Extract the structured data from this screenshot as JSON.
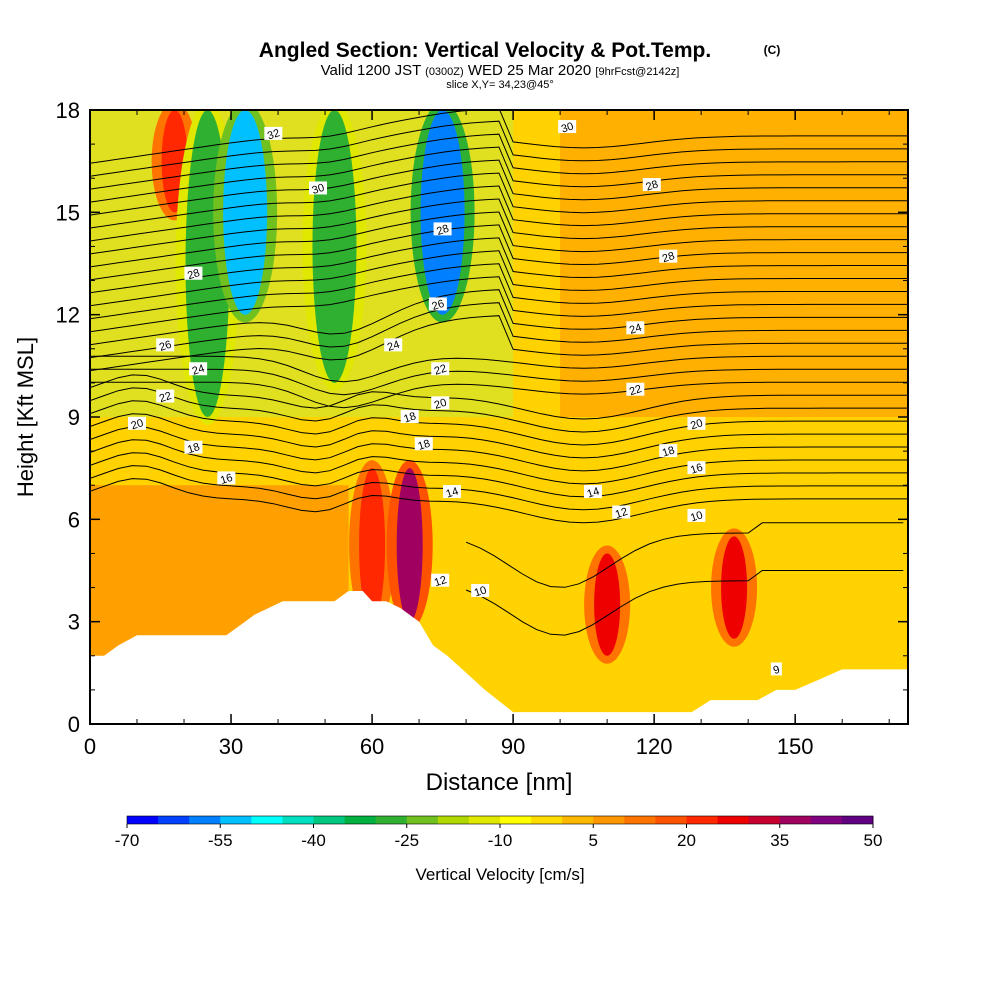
{
  "chart_data": {
    "type": "heatmap",
    "title": "Angled Section: Vertical Velocity & Pot.Temp.",
    "title_mark": "(C)",
    "subtitle_parts": [
      "Valid 1200 JST",
      "(0300Z)",
      "WED 25 Mar 2020",
      "[9hrFcst@2142z]"
    ],
    "subtitle2": "slice X,Y= 34,23@45°",
    "xlabel": "Distance [nm]",
    "ylabel": "Height [Kft MSL]",
    "xlim": [
      0,
      174
    ],
    "ylim": [
      0,
      18
    ],
    "xticks": [
      0,
      30,
      60,
      90,
      120,
      150
    ],
    "yticks": [
      0,
      3,
      6,
      9,
      12,
      15,
      18
    ],
    "colorbar": {
      "label": "Vertical Velocity [cm/s]",
      "tick_labels": [
        "-70",
        "-55",
        "-40",
        "-25",
        "-10",
        "5",
        "20",
        "35",
        "50"
      ],
      "colors": [
        "#0000ff",
        "#0040ff",
        "#0080ff",
        "#00c0ff",
        "#00ffff",
        "#00e0c0",
        "#00c880",
        "#00b040",
        "#30b030",
        "#70c020",
        "#b0d800",
        "#e0e800",
        "#ffff00",
        "#ffdc00",
        "#ffb800",
        "#ff9600",
        "#ff7400",
        "#ff5200",
        "#ff2800",
        "#ee0000",
        "#c80030",
        "#a00060",
        "#800080",
        "#600080"
      ]
    },
    "vertical_velocity_features": [
      {
        "kind": "updraft",
        "x": 18,
        "y_range": [
          15,
          18
        ],
        "peak": 25
      },
      {
        "kind": "downdraft",
        "x": 25,
        "y_range": [
          9,
          18
        ],
        "peak": -30
      },
      {
        "kind": "downdraft",
        "x": 33,
        "y_range": [
          12,
          18
        ],
        "peak": -55
      },
      {
        "kind": "downdraft",
        "x": 52,
        "y_range": [
          10,
          18
        ],
        "peak": -30
      },
      {
        "kind": "downdraft",
        "x": 75,
        "y_range": [
          12,
          18
        ],
        "peak": -60
      },
      {
        "kind": "updraft",
        "x": 60,
        "y_range": [
          3,
          7.5
        ],
        "peak": 25
      },
      {
        "kind": "updraft",
        "x": 68,
        "y_range": [
          3,
          7.5
        ],
        "peak": 40
      },
      {
        "kind": "updraft",
        "x": 110,
        "y_range": [
          2,
          5
        ],
        "peak": 30
      },
      {
        "kind": "updraft",
        "x": 137,
        "y_range": [
          2.5,
          5.5
        ],
        "peak": 30
      }
    ],
    "pot_temp_contour_labels": [
      {
        "text": "32",
        "x": 39,
        "y": 17.3
      },
      {
        "text": "30",
        "x": 48.5,
        "y": 15.7
      },
      {
        "text": "30",
        "x": 101.5,
        "y": 17.5
      },
      {
        "text": "28",
        "x": 75,
        "y": 14.5
      },
      {
        "text": "28",
        "x": 119.5,
        "y": 15.8
      },
      {
        "text": "28",
        "x": 123,
        "y": 13.7
      },
      {
        "text": "28",
        "x": 22,
        "y": 13.2
      },
      {
        "text": "26",
        "x": 74,
        "y": 12.3
      },
      {
        "text": "26",
        "x": 16,
        "y": 11.1
      },
      {
        "text": "24",
        "x": 64.5,
        "y": 11.1
      },
      {
        "text": "24",
        "x": 23,
        "y": 10.4
      },
      {
        "text": "24",
        "x": 116,
        "y": 11.6
      },
      {
        "text": "22",
        "x": 74.5,
        "y": 10.4
      },
      {
        "text": "22",
        "x": 16,
        "y": 9.6
      },
      {
        "text": "22",
        "x": 116,
        "y": 9.8
      },
      {
        "text": "20",
        "x": 74.5,
        "y": 9.4
      },
      {
        "text": "20",
        "x": 10,
        "y": 8.8
      },
      {
        "text": "20",
        "x": 129,
        "y": 8.8
      },
      {
        "text": "18",
        "x": 68,
        "y": 9.0
      },
      {
        "text": "18",
        "x": 71,
        "y": 8.2
      },
      {
        "text": "18",
        "x": 123,
        "y": 8.0
      },
      {
        "text": "18",
        "x": 22,
        "y": 8.1
      },
      {
        "text": "16",
        "x": 29,
        "y": 7.2
      },
      {
        "text": "16",
        "x": 129,
        "y": 7.5
      },
      {
        "text": "14",
        "x": 77,
        "y": 6.8
      },
      {
        "text": "14",
        "x": 107,
        "y": 6.8
      },
      {
        "text": "12",
        "x": 113,
        "y": 6.2
      },
      {
        "text": "12",
        "x": 74.5,
        "y": 4.2
      },
      {
        "text": "10",
        "x": 129,
        "y": 6.1
      },
      {
        "text": "10",
        "x": 83,
        "y": 3.9
      },
      {
        "text": "9",
        "x": 146,
        "y": 1.6
      }
    ],
    "terrain_profile_x": [
      0,
      3,
      6,
      10,
      14,
      20,
      25,
      29,
      32,
      35,
      38,
      41,
      44,
      47,
      50,
      52,
      55,
      58,
      60,
      63,
      66,
      70,
      73,
      76,
      80,
      84,
      90,
      100,
      110,
      120,
      128,
      132,
      138,
      142,
      146,
      150,
      155,
      160,
      165,
      170,
      174
    ],
    "terrain_profile_y": [
      2.0,
      2.0,
      2.3,
      2.6,
      2.6,
      2.6,
      2.6,
      2.6,
      2.9,
      3.2,
      3.4,
      3.6,
      3.6,
      3.6,
      3.6,
      3.6,
      3.9,
      3.9,
      3.6,
      3.6,
      3.4,
      3.0,
      2.3,
      2.0,
      1.5,
      1.0,
      0.35,
      0.35,
      0.35,
      0.35,
      0.35,
      0.7,
      0.7,
      0.7,
      1.0,
      1.0,
      1.3,
      1.6,
      1.6,
      1.6,
      1.6
    ]
  }
}
